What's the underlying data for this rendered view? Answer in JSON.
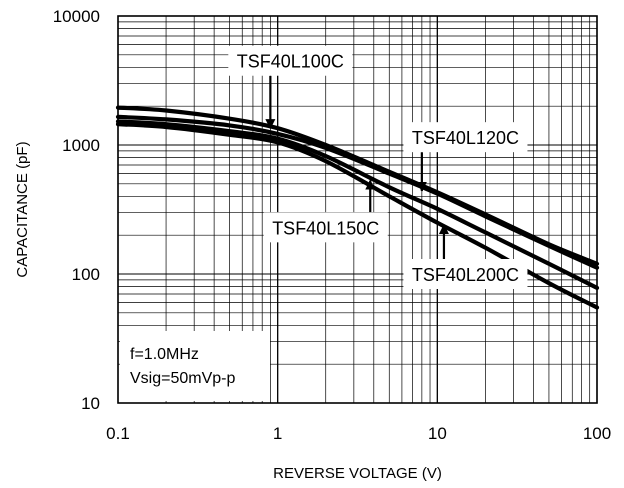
{
  "chart_data": {
    "type": "line",
    "xscale": "log",
    "yscale": "log",
    "xlim": [
      0.1,
      100
    ],
    "ylim": [
      10,
      10000
    ],
    "xlabel": "REVERSE VOLTAGE (V)",
    "ylabel": "CAPACITANCE (pF)",
    "grid": true,
    "x_ticks": [
      "0.1",
      "1",
      "10",
      "100"
    ],
    "y_ticks": [
      "10",
      "100",
      "1000",
      "10000"
    ],
    "series": [
      {
        "name": "TSF40L100C",
        "x": [
          0.1,
          0.2,
          0.5,
          1,
          2,
          5,
          10,
          20,
          50,
          100
        ],
        "y": [
          1950,
          1850,
          1600,
          1350,
          1000,
          620,
          430,
          290,
          170,
          120
        ]
      },
      {
        "name": "TSF40L120C",
        "x": [
          0.1,
          0.2,
          0.5,
          1,
          2,
          5,
          10,
          20,
          50,
          100
        ],
        "y": [
          1650,
          1580,
          1420,
          1220,
          950,
          600,
          420,
          280,
          165,
          112
        ]
      },
      {
        "name": "TSF40L150C",
        "x": [
          0.1,
          0.2,
          0.5,
          1,
          2,
          5,
          10,
          20,
          50,
          100
        ],
        "y": [
          1520,
          1450,
          1280,
          1120,
          820,
          470,
          320,
          210,
          120,
          78
        ]
      },
      {
        "name": "TSF40L200C",
        "x": [
          0.1,
          0.2,
          0.5,
          1,
          2,
          5,
          10,
          20,
          50,
          100
        ],
        "y": [
          1450,
          1380,
          1200,
          1050,
          750,
          400,
          250,
          160,
          85,
          55
        ]
      }
    ],
    "annotations": [
      {
        "text": "TSF40L100C",
        "series": "TSF40L100C",
        "at": [
          0.9,
          1350
        ],
        "label_at": [
          1.2,
          4500
        ]
      },
      {
        "text": "TSF40L120C",
        "series": "TSF40L120C",
        "at": [
          8,
          440
        ],
        "label_at": [
          15,
          1150
        ]
      },
      {
        "text": "TSF40L150C",
        "series": "TSF40L150C",
        "at": [
          3.8,
          530
        ],
        "label_at": [
          2.0,
          230
        ]
      },
      {
        "text": "TSF40L200C",
        "series": "TSF40L200C",
        "at": [
          11,
          240
        ],
        "label_at": [
          15,
          100
        ]
      }
    ],
    "note": {
      "lines": [
        "f=1.0MHz",
        "Vsig=50mVp-p"
      ],
      "placement": "bottom-left"
    }
  }
}
